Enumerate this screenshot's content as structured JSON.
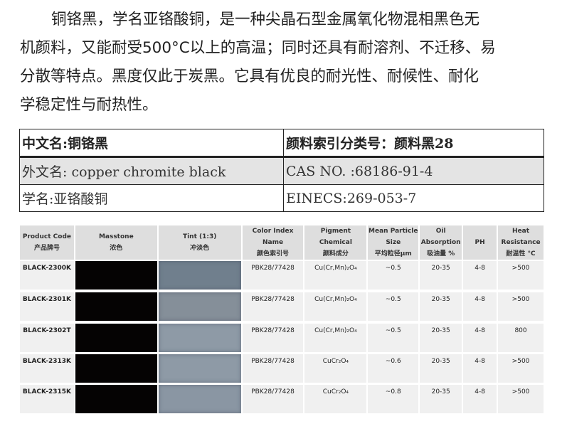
{
  "intro": {
    "lines": [
      "铜铬黑，学名亚铬酸铜，是一种尖晶石型金属氧化物混相黑色无",
      "机颜料，又能耐受500°C以上的高温；同时还具有耐溶剂、不迁移、易",
      "分散等特点。黑度仅此于炭黑。它具有优良的耐光性、耐候性、耐化",
      "学稳定性与耐热性。"
    ]
  },
  "info_table": [
    [
      "中文名:铜铬黑",
      "颜料索引分类号：颜料黑28"
    ],
    [
      "外文名: copper chromite black",
      "CAS NO. :68186-91-4"
    ],
    [
      "学名:亚铬酸铜",
      "EINECS:269-053-7"
    ]
  ],
  "spec_table": {
    "headers": [
      [
        "Product Code",
        "产品牌号"
      ],
      [
        "Masstone",
        "浓色"
      ],
      [
        "Tint (1:3)",
        "冲淡色"
      ],
      [
        "Color Index Name",
        "颜色索引号"
      ],
      [
        "Pigment Chemical",
        "颜料成分"
      ],
      [
        "Mean Particle Size",
        "平均粒径μm"
      ],
      [
        "Oil Absorption",
        "吸油量 %"
      ],
      [
        "PH",
        ""
      ],
      [
        "Heat Resistance",
        "耐温性 °C"
      ]
    ],
    "rows": [
      {
        "code": "BLACK-2300K",
        "masstone": "#050303",
        "tint": "#707f8d",
        "ci": "PBK28/77428",
        "chem": "Cu(Cr,Mn)₂O₄",
        "size": "~0.5",
        "oil": "20-35",
        "ph": "4-8",
        "heat": ">500"
      },
      {
        "code": "BLACK-2301K",
        "masstone": "#050303",
        "tint": "#858f99",
        "ci": "PBK28/77428",
        "chem": "Cu(Cr,Mn)₂O₄",
        "size": "~0.5",
        "oil": "20-35",
        "ph": "4-8",
        "heat": ">500"
      },
      {
        "code": "BLACK-2302T",
        "masstone": "#050303",
        "tint": "#8e9aa6",
        "ci": "PBK28/77428",
        "chem": "Cu(Cr,Mn)₂O₄",
        "size": "~0.5",
        "oil": "20-35",
        "ph": "4-8",
        "heat": "800"
      },
      {
        "code": "BLACK-2313K",
        "masstone": "#050303",
        "tint": "#8e9aa6",
        "ci": "PBK28/77428",
        "chem": "CuCr₂O₄",
        "size": "~0.6",
        "oil": "20-35",
        "ph": "4-8",
        "heat": ">500"
      },
      {
        "code": "BLACK-2315K",
        "masstone": "#050303",
        "tint": "#8a96a3",
        "ci": "PBK28/77428",
        "chem": "CuCr₂O₄",
        "size": "~0.8",
        "oil": "20-35",
        "ph": "4-8",
        "heat": ">500"
      }
    ]
  }
}
